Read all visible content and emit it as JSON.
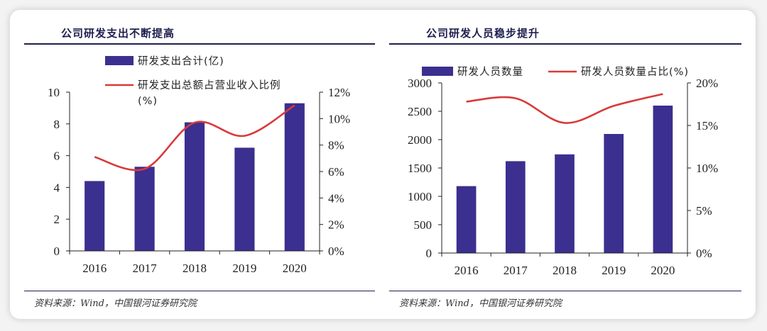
{
  "colors": {
    "bar": "#3b2f8f",
    "line": "#d93a3a",
    "axis": "#222222",
    "rule": "#1f1f4f"
  },
  "source": "资料来源：Wind，中国银河证券研究院",
  "chart_data": [
    {
      "type": "bar",
      "title": "公司研发支出不断提高",
      "categories": [
        "2016",
        "2017",
        "2018",
        "2019",
        "2020"
      ],
      "series": [
        {
          "name": "研发支出合计(亿)",
          "type": "bar",
          "axis": "left",
          "values": [
            4.4,
            5.3,
            8.1,
            6.5,
            9.3
          ]
        },
        {
          "name": "研发支出总额占营业收入比例",
          "name_suffix": "(%)",
          "type": "line",
          "axis": "right",
          "values": [
            7.1,
            6.2,
            9.7,
            8.7,
            11.0
          ]
        }
      ],
      "ylim": [
        0,
        10
      ],
      "yticks": [
        "0",
        "2",
        "4",
        "6",
        "8",
        "10"
      ],
      "y2lim": [
        0,
        12
      ],
      "y2ticks": [
        "0%",
        "2%",
        "4%",
        "6%",
        "8%",
        "10%",
        "12%"
      ],
      "legend": "top-left",
      "grid": false
    },
    {
      "type": "bar",
      "title": "公司研发人员稳步提升",
      "categories": [
        "2016",
        "2017",
        "2018",
        "2019",
        "2020"
      ],
      "series": [
        {
          "name": "研发人员数量",
          "type": "bar",
          "axis": "left",
          "values": [
            1180,
            1620,
            1740,
            2100,
            2600
          ]
        },
        {
          "name": "研发人员数量占比(%)",
          "type": "line",
          "axis": "right",
          "values": [
            17.8,
            18.2,
            15.3,
            17.3,
            18.7
          ]
        }
      ],
      "ylim": [
        0,
        3000
      ],
      "yticks": [
        "0",
        "500",
        "1000",
        "1500",
        "2000",
        "2500",
        "3000"
      ],
      "y2lim": [
        0,
        20
      ],
      "y2ticks": [
        "0%",
        "5%",
        "10%",
        "15%",
        "20%"
      ],
      "legend": "top",
      "grid": false
    }
  ]
}
